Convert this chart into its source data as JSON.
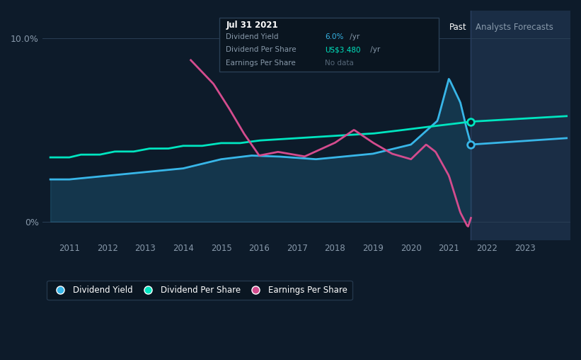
{
  "bg_color": "#0d1b2a",
  "plot_bg_color": "#0d1b2a",
  "highlight_bg": "#1a2d45",
  "div_yield_color": "#38b6e8",
  "div_per_share_color": "#00e5c0",
  "eps_color": "#d44c8e",
  "tooltip": {
    "date": "Jul 31 2021",
    "div_yield_label": "Dividend Yield",
    "div_yield_value": "6.0%",
    "div_yield_suffix": " /yr",
    "div_per_share_label": "Dividend Per Share",
    "div_per_share_value": "US$3.480",
    "div_per_share_suffix": " /yr",
    "eps_label": "Earnings Per Share",
    "eps_value": "No data"
  },
  "past_label": "Past",
  "forecast_label": "Analysts Forecasts",
  "ytick_top": "10.0%",
  "ytick_bottom": "0%",
  "xticks": [
    "2011",
    "2012",
    "2013",
    "2014",
    "2015",
    "2016",
    "2017",
    "2018",
    "2019",
    "2020",
    "2021",
    "2022",
    "2023"
  ],
  "legend_items": [
    "Dividend Yield",
    "Dividend Per Share",
    "Earnings Per Share"
  ],
  "past_x": 2021.58,
  "xmin": 2010.3,
  "xmax": 2024.2,
  "ymin": -1.0,
  "ymax": 11.5
}
